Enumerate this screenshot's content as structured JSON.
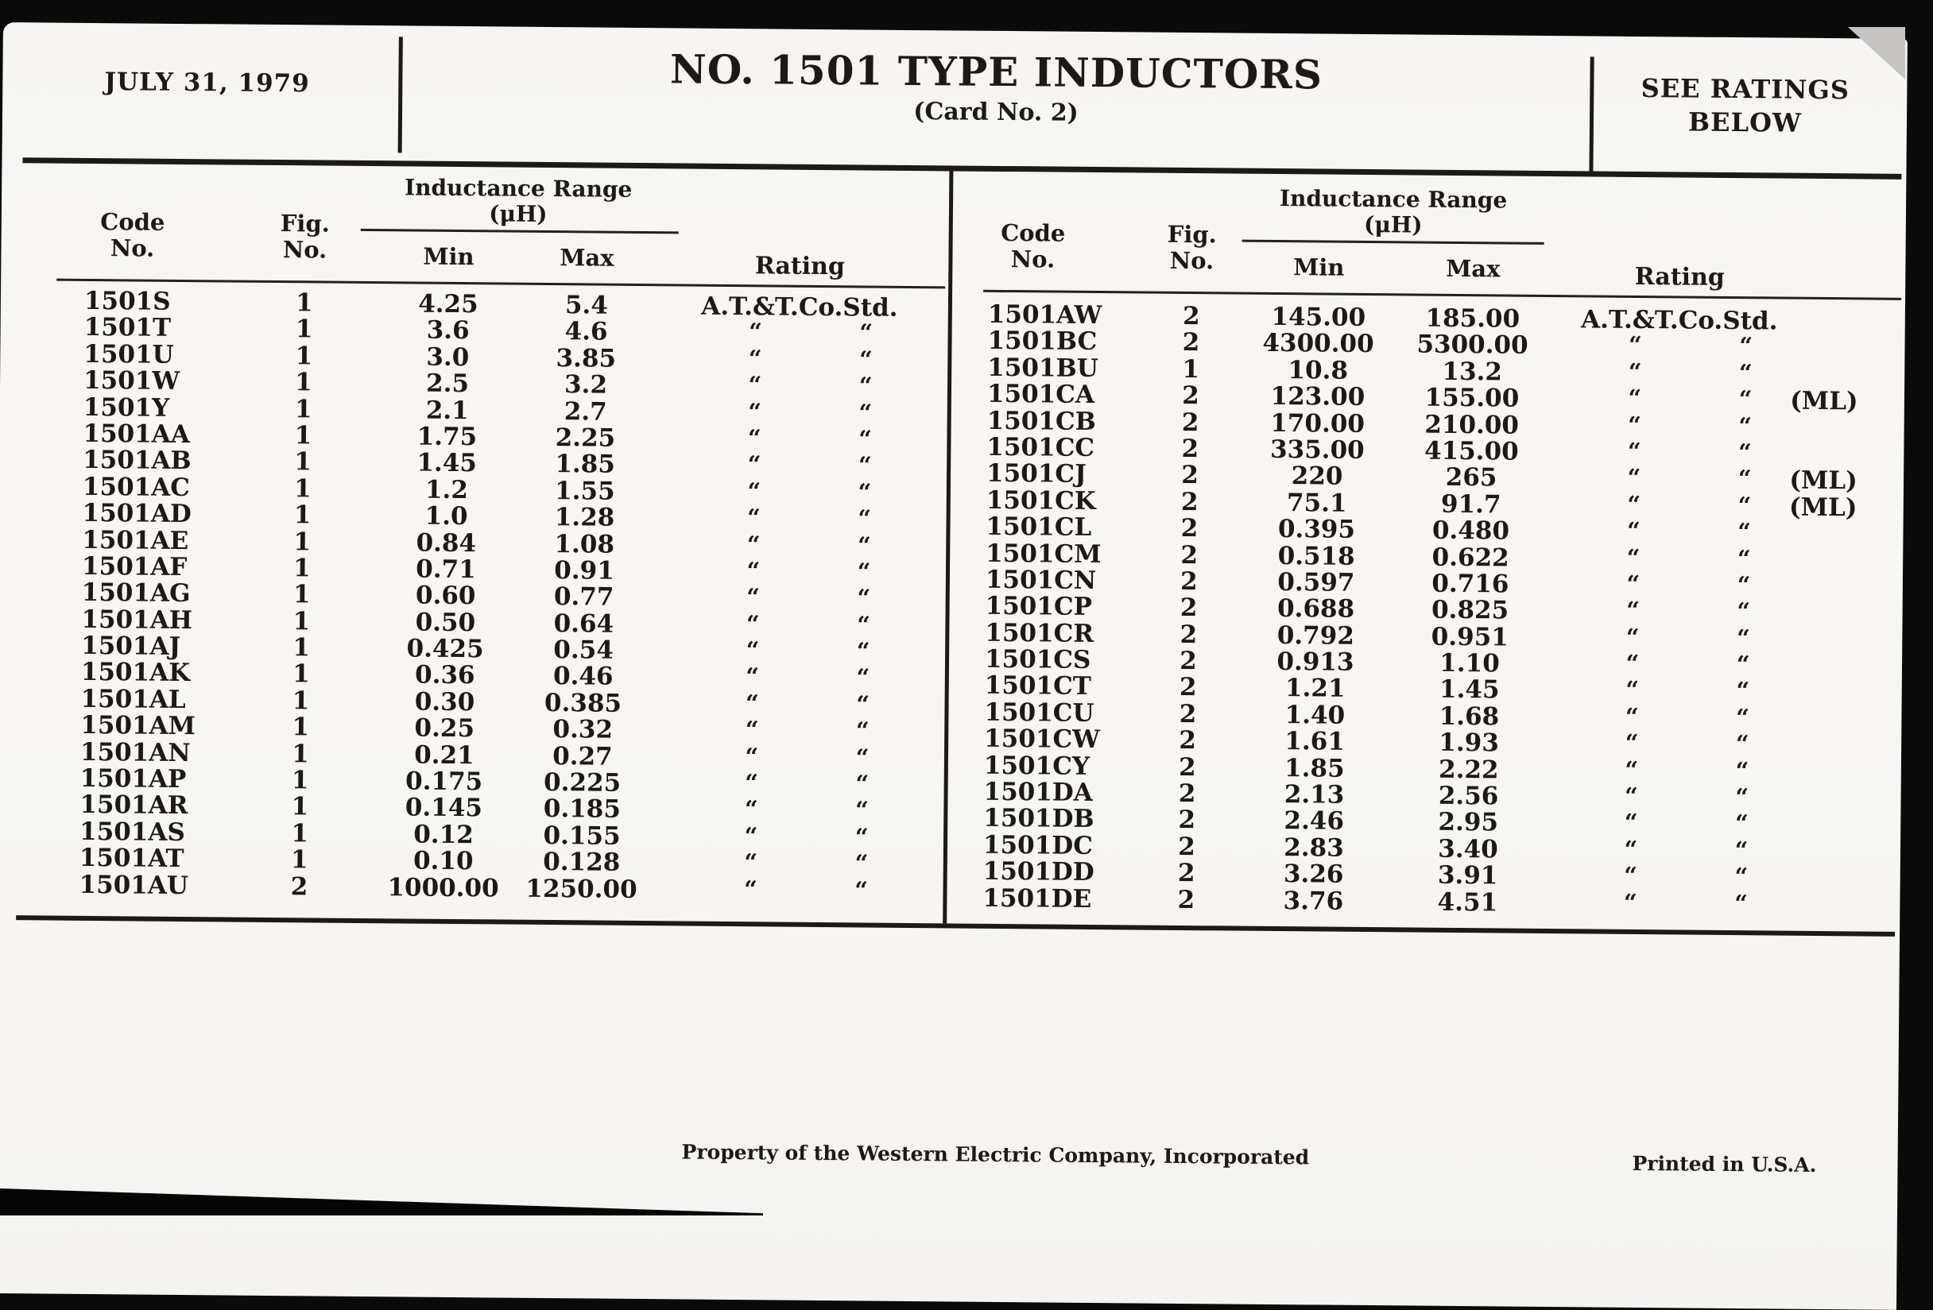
{
  "header": {
    "date": "JULY 31, 1979",
    "title": "NO. 1501 TYPE INDUCTORS",
    "subtitle": "(Card No. 2)",
    "ratings_note": [
      "SEE RATINGS",
      "BELOW"
    ]
  },
  "column_headers": {
    "code": [
      "Code",
      "No."
    ],
    "fig": [
      "Fig.",
      "No."
    ],
    "inductance_range": [
      "Inductance Range",
      "(μH)"
    ],
    "min": "Min",
    "max": "Max",
    "rating": "Rating"
  },
  "rating_full": "A.T.&T.Co.Std.",
  "ditto_mark": "“",
  "left_table": {
    "rows": [
      {
        "code": "1501S",
        "fig": "1",
        "min": "4.25",
        "max": "5.4",
        "rating": "full",
        "note": ""
      },
      {
        "code": "1501T",
        "fig": "1",
        "min": "3.6",
        "max": "4.6",
        "rating": "ditto",
        "note": ""
      },
      {
        "code": "1501U",
        "fig": "1",
        "min": "3.0",
        "max": "3.85",
        "rating": "ditto",
        "note": ""
      },
      {
        "code": "1501W",
        "fig": "1",
        "min": "2.5",
        "max": "3.2",
        "rating": "ditto",
        "note": ""
      },
      {
        "code": "1501Y",
        "fig": "1",
        "min": "2.1",
        "max": "2.7",
        "rating": "ditto",
        "note": ""
      },
      {
        "code": "1501AA",
        "fig": "1",
        "min": "1.75",
        "max": "2.25",
        "rating": "ditto",
        "note": ""
      },
      {
        "code": "1501AB",
        "fig": "1",
        "min": "1.45",
        "max": "1.85",
        "rating": "ditto",
        "note": ""
      },
      {
        "code": "1501AC",
        "fig": "1",
        "min": "1.2",
        "max": "1.55",
        "rating": "ditto",
        "note": ""
      },
      {
        "code": "1501AD",
        "fig": "1",
        "min": "1.0",
        "max": "1.28",
        "rating": "ditto",
        "note": ""
      },
      {
        "code": "1501AE",
        "fig": "1",
        "min": "0.84",
        "max": "1.08",
        "rating": "ditto",
        "note": ""
      },
      {
        "code": "1501AF",
        "fig": "1",
        "min": "0.71",
        "max": "0.91",
        "rating": "ditto",
        "note": ""
      },
      {
        "code": "1501AG",
        "fig": "1",
        "min": "0.60",
        "max": "0.77",
        "rating": "ditto",
        "note": ""
      },
      {
        "code": "1501AH",
        "fig": "1",
        "min": "0.50",
        "max": "0.64",
        "rating": "ditto",
        "note": ""
      },
      {
        "code": "1501AJ",
        "fig": "1",
        "min": "0.425",
        "max": "0.54",
        "rating": "ditto",
        "note": ""
      },
      {
        "code": "1501AK",
        "fig": "1",
        "min": "0.36",
        "max": "0.46",
        "rating": "ditto",
        "note": ""
      },
      {
        "code": "1501AL",
        "fig": "1",
        "min": "0.30",
        "max": "0.385",
        "rating": "ditto",
        "note": ""
      },
      {
        "code": "1501AM",
        "fig": "1",
        "min": "0.25",
        "max": "0.32",
        "rating": "ditto",
        "note": ""
      },
      {
        "code": "1501AN",
        "fig": "1",
        "min": "0.21",
        "max": "0.27",
        "rating": "ditto",
        "note": ""
      },
      {
        "code": "1501AP",
        "fig": "1",
        "min": "0.175",
        "max": "0.225",
        "rating": "ditto",
        "note": ""
      },
      {
        "code": "1501AR",
        "fig": "1",
        "min": "0.145",
        "max": "0.185",
        "rating": "ditto",
        "note": ""
      },
      {
        "code": "1501AS",
        "fig": "1",
        "min": "0.12",
        "max": "0.155",
        "rating": "ditto",
        "note": ""
      },
      {
        "code": "1501AT",
        "fig": "1",
        "min": "0.10",
        "max": "0.128",
        "rating": "ditto",
        "note": ""
      },
      {
        "code": "1501AU",
        "fig": "2",
        "min": "1000.00",
        "max": "1250.00",
        "rating": "ditto",
        "note": ""
      }
    ]
  },
  "right_table": {
    "rows": [
      {
        "code": "1501AW",
        "fig": "2",
        "min": "145.00",
        "max": "185.00",
        "rating": "full",
        "note": ""
      },
      {
        "code": "1501BC",
        "fig": "2",
        "min": "4300.00",
        "max": "5300.00",
        "rating": "ditto",
        "note": ""
      },
      {
        "code": "1501BU",
        "fig": "1",
        "min": "10.8",
        "max": "13.2",
        "rating": "ditto",
        "note": ""
      },
      {
        "code": "1501CA",
        "fig": "2",
        "min": "123.00",
        "max": "155.00",
        "rating": "ditto",
        "note": "(ML)"
      },
      {
        "code": "1501CB",
        "fig": "2",
        "min": "170.00",
        "max": "210.00",
        "rating": "ditto",
        "note": ""
      },
      {
        "code": "1501CC",
        "fig": "2",
        "min": "335.00",
        "max": "415.00",
        "rating": "ditto",
        "note": ""
      },
      {
        "code": "1501CJ",
        "fig": "2",
        "min": "220",
        "max": "265",
        "rating": "ditto",
        "note": "(ML)"
      },
      {
        "code": "1501CK",
        "fig": "2",
        "min": "75.1",
        "max": "91.7",
        "rating": "ditto",
        "note": "(ML)"
      },
      {
        "code": "1501CL",
        "fig": "2",
        "min": "0.395",
        "max": "0.480",
        "rating": "ditto",
        "note": ""
      },
      {
        "code": "1501CM",
        "fig": "2",
        "min": "0.518",
        "max": "0.622",
        "rating": "ditto",
        "note": ""
      },
      {
        "code": "1501CN",
        "fig": "2",
        "min": "0.597",
        "max": "0.716",
        "rating": "ditto",
        "note": ""
      },
      {
        "code": "1501CP",
        "fig": "2",
        "min": "0.688",
        "max": "0.825",
        "rating": "ditto",
        "note": ""
      },
      {
        "code": "1501CR",
        "fig": "2",
        "min": "0.792",
        "max": "0.951",
        "rating": "ditto",
        "note": ""
      },
      {
        "code": "1501CS",
        "fig": "2",
        "min": "0.913",
        "max": "1.10",
        "rating": "ditto",
        "note": ""
      },
      {
        "code": "1501CT",
        "fig": "2",
        "min": "1.21",
        "max": "1.45",
        "rating": "ditto",
        "note": ""
      },
      {
        "code": "1501CU",
        "fig": "2",
        "min": "1.40",
        "max": "1.68",
        "rating": "ditto",
        "note": ""
      },
      {
        "code": "1501CW",
        "fig": "2",
        "min": "1.61",
        "max": "1.93",
        "rating": "ditto",
        "note": ""
      },
      {
        "code": "1501CY",
        "fig": "2",
        "min": "1.85",
        "max": "2.22",
        "rating": "ditto",
        "note": ""
      },
      {
        "code": "1501DA",
        "fig": "2",
        "min": "2.13",
        "max": "2.56",
        "rating": "ditto",
        "note": ""
      },
      {
        "code": "1501DB",
        "fig": "2",
        "min": "2.46",
        "max": "2.95",
        "rating": "ditto",
        "note": ""
      },
      {
        "code": "1501DC",
        "fig": "2",
        "min": "2.83",
        "max": "3.40",
        "rating": "ditto",
        "note": ""
      },
      {
        "code": "1501DD",
        "fig": "2",
        "min": "3.26",
        "max": "3.91",
        "rating": "ditto",
        "note": ""
      },
      {
        "code": "1501DE",
        "fig": "2",
        "min": "3.76",
        "max": "4.51",
        "rating": "ditto",
        "note": ""
      }
    ]
  },
  "footer": {
    "property_note": "Property of the Western Electric Company, Incorporated",
    "printed_note": "Printed in U.S.A."
  }
}
